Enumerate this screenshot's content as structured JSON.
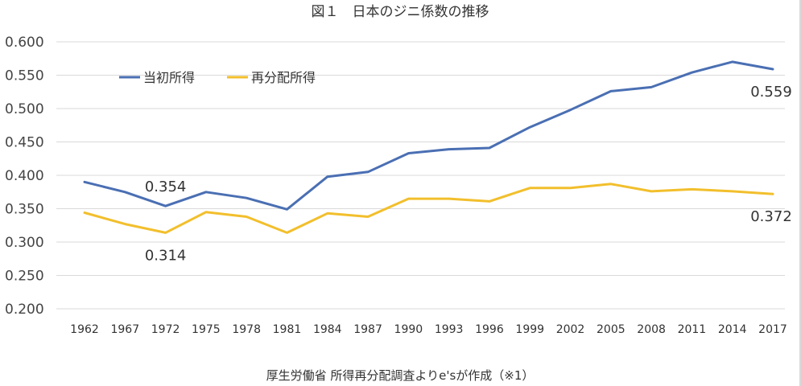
{
  "chart_data": {
    "type": "line",
    "title": "図１　日本のジニ係数の推移",
    "source": "厚生労働省 所得再分配調査よりe'sが作成（※1）",
    "categories": [
      "1962",
      "1967",
      "1972",
      "1975",
      "1978",
      "1981",
      "1984",
      "1987",
      "1990",
      "1993",
      "1996",
      "1999",
      "2002",
      "2005",
      "2008",
      "2011",
      "2014",
      "2017"
    ],
    "ylim": [
      0.2,
      0.6
    ],
    "yticks": [
      "0.200",
      "0.250",
      "0.300",
      "0.350",
      "0.400",
      "0.450",
      "0.500",
      "0.550",
      "0.600"
    ],
    "grid": true,
    "legend_position": "top-left",
    "series": [
      {
        "name": "当初所得",
        "color": "#4a6fb3",
        "values": [
          0.39,
          0.375,
          0.354,
          0.375,
          0.366,
          0.349,
          0.398,
          0.405,
          0.433,
          0.439,
          0.441,
          0.472,
          0.498,
          0.526,
          0.532,
          0.554,
          0.57,
          0.559
        ]
      },
      {
        "name": "再分配所得",
        "color": "#f2bf2c",
        "values": [
          0.344,
          0.327,
          0.314,
          0.345,
          0.338,
          0.314,
          0.343,
          0.338,
          0.365,
          0.365,
          0.361,
          0.381,
          0.381,
          0.387,
          0.376,
          0.379,
          0.376,
          0.372
        ]
      }
    ],
    "annotations": [
      {
        "text": "0.354",
        "series": 0,
        "index": 2
      },
      {
        "text": "0.314",
        "series": 1,
        "index": 2
      },
      {
        "text": "0.559",
        "series": 0,
        "index": 17
      },
      {
        "text": "0.372",
        "series": 1,
        "index": 17
      }
    ]
  }
}
